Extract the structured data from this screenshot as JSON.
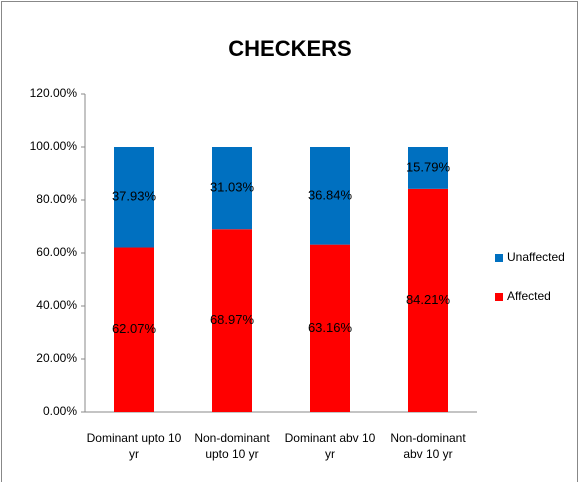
{
  "chart_data": {
    "type": "bar",
    "stacked": true,
    "title": "CHECKERS",
    "categories": [
      "Dominant upto 10 yr",
      "Non-dominant upto 10 yr",
      "Dominant abv 10 yr",
      "Non-dominant abv 10 yr"
    ],
    "series": [
      {
        "name": "Affected",
        "color": "#ff0000",
        "values": [
          62.07,
          68.97,
          63.16,
          84.21
        ],
        "value_labels": [
          "62.07%",
          "68.97%",
          "63.16%",
          "84.21%"
        ]
      },
      {
        "name": "Unaffected",
        "color": "#0070c0",
        "values": [
          37.93,
          31.03,
          36.84,
          15.79
        ],
        "value_labels": [
          "37.93%",
          "31.03%",
          "36.84%",
          "15.79%"
        ]
      }
    ],
    "ylim": [
      0,
      120
    ],
    "yticks": [
      {
        "value": 0,
        "label": "0.00%"
      },
      {
        "value": 20,
        "label": "20.00%"
      },
      {
        "value": 40,
        "label": "40.00%"
      },
      {
        "value": 60,
        "label": "60.00%"
      },
      {
        "value": 80,
        "label": "80.00%"
      },
      {
        "value": 100,
        "label": "100.00%"
      },
      {
        "value": 120,
        "label": "120.00%"
      }
    ],
    "legend": "right"
  }
}
